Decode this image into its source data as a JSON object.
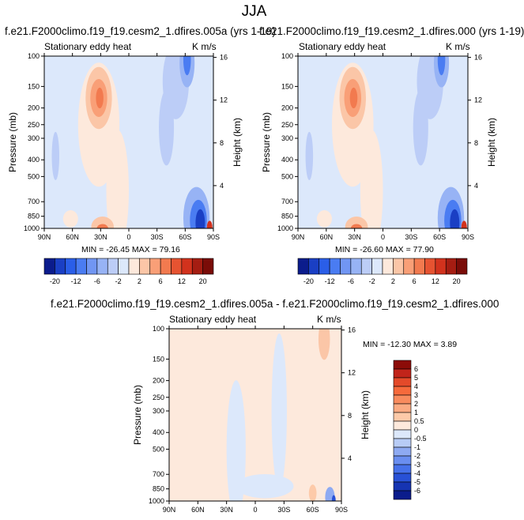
{
  "figure": {
    "title": "JJA"
  },
  "panels": [
    {
      "title": "f.e21.F2000climo.f19_f19.cesm2_1.dfires.005a (yrs 1-19)",
      "left_label": "Stationary eddy heat",
      "right_label": "K m/s",
      "minmax": "MIN = -26.45   MAX = 79.16"
    },
    {
      "title": "f.e21.F2000climo.f19_f19.cesm2_1.dfires.000 (yrs 1-19)",
      "left_label": "Stationary eddy heat",
      "right_label": "K m/s",
      "minmax": "MIN = -26.60   MAX = 77.90"
    },
    {
      "title": "f.e21.F2000climo.f19_f19.cesm2_1.dfires.005a - f.e21.F2000climo.f19_f19.cesm2_1.dfires.000",
      "left_label": "Stationary eddy heat",
      "right_label": "K m/s",
      "minmax": "MIN = -12.30   MAX =  3.89"
    }
  ],
  "chart_data": [
    {
      "type": "heatmap",
      "title": "f.e21.F2000climo.f19_f19.cesm2_1.dfires.005a (yrs 1-19)",
      "subtitle": "Stationary eddy heat",
      "units": "K m/s",
      "xlabel": "",
      "ylabel": "Pressure (mb)",
      "y2label": "Height (km)",
      "x_ticks": [
        "90N",
        "60N",
        "30N",
        "0",
        "30S",
        "60S",
        "90S"
      ],
      "x_range": [
        90,
        -90
      ],
      "y_ticks": [
        100,
        150,
        200,
        250,
        300,
        400,
        500,
        700,
        850,
        1000
      ],
      "y_range": [
        1000,
        100
      ],
      "y2_ticks": [
        4,
        8,
        12,
        16
      ],
      "min": -26.45,
      "max": 79.16
    },
    {
      "type": "heatmap",
      "title": "f.e21.F2000climo.f19_f19.cesm2_1.dfires.000 (yrs 1-19)",
      "subtitle": "Stationary eddy heat",
      "units": "K m/s",
      "xlabel": "",
      "ylabel": "Pressure (mb)",
      "y2label": "Height (km)",
      "x_ticks": [
        "90N",
        "60N",
        "30N",
        "0",
        "30S",
        "60S",
        "90S"
      ],
      "x_range": [
        90,
        -90
      ],
      "y_ticks": [
        100,
        150,
        200,
        250,
        300,
        400,
        500,
        700,
        850,
        1000
      ],
      "y_range": [
        1000,
        100
      ],
      "y2_ticks": [
        4,
        8,
        12,
        16
      ],
      "min": -26.6,
      "max": 77.9
    },
    {
      "type": "heatmap",
      "title": "f.e21.F2000climo.f19_f19.cesm2_1.dfires.005a - f.e21.F2000climo.f19_f19.cesm2_1.dfires.000",
      "subtitle": "Stationary eddy heat",
      "units": "K m/s",
      "xlabel": "",
      "ylabel": "Pressure (mb)",
      "y2label": "Height (km)",
      "x_ticks": [
        "90N",
        "60N",
        "30N",
        "0",
        "30S",
        "60S",
        "90S"
      ],
      "x_range": [
        90,
        -90
      ],
      "y_ticks": [
        100,
        150,
        200,
        250,
        300,
        400,
        500,
        700,
        850,
        1000
      ],
      "y_range": [
        1000,
        100
      ],
      "y2_ticks": [
        4,
        8,
        12,
        16
      ],
      "min": -12.3,
      "max": 3.89
    }
  ],
  "colorbars": {
    "top": {
      "labels": [
        "-20",
        "-12",
        "-6",
        "-2",
        "2",
        "6",
        "12",
        "20"
      ],
      "colors": [
        "#0b1c8c",
        "#1a3fc4",
        "#2a5ee8",
        "#4a7cf2",
        "#7196f3",
        "#97b3f5",
        "#bccdf7",
        "#dce8fb",
        "#fde9dc",
        "#fbc6a7",
        "#f99f77",
        "#f27a4f",
        "#e65331",
        "#d2321d",
        "#a51d12",
        "#7a0c08"
      ]
    },
    "bottom": {
      "labels": [
        "6",
        "5",
        "4",
        "3",
        "2",
        "1",
        "0.5",
        "0",
        "-0.5",
        "-1",
        "-2",
        "-3",
        "-4",
        "-5",
        "-6"
      ],
      "colors": [
        "#8c0c08",
        "#c1241a",
        "#e44a2a",
        "#f66a3c",
        "#f88b5e",
        "#fbab83",
        "#fdcaa9",
        "#fde9dc",
        "#dce8fb",
        "#b8ccf6",
        "#8eaaf2",
        "#6a8ef0",
        "#4671ea",
        "#2851d6",
        "#1634b2",
        "#0b1c8c"
      ]
    }
  },
  "colors": {
    "background_neutral": "#dce8fb",
    "positive_light": "#fde9dc",
    "negative_light": "#dce8fb"
  }
}
